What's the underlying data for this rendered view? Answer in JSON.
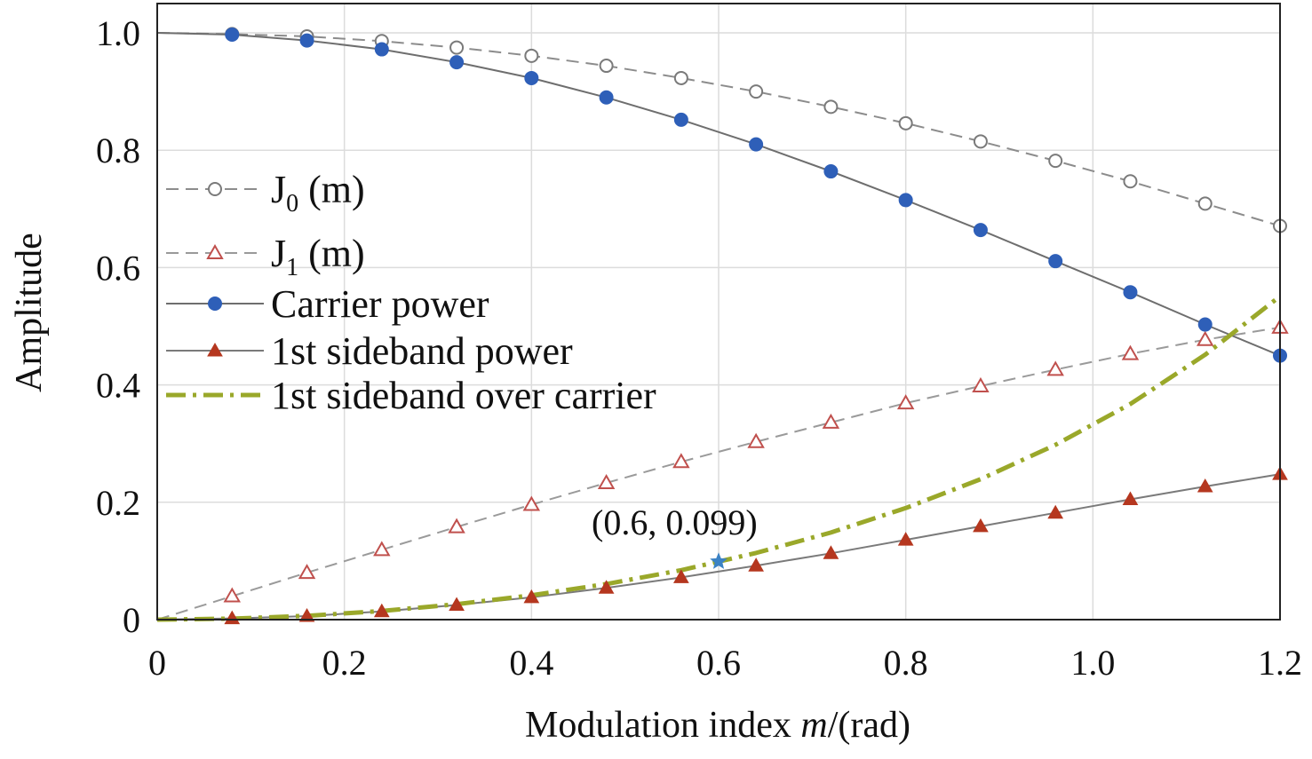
{
  "chart_data": {
    "type": "line",
    "xlabel_main": "Modulation index ",
    "xlabel_var": "m",
    "xlabel_unit": "/(rad)",
    "ylabel": "Amplitude",
    "xlim": [
      0,
      1.2
    ],
    "ylim": [
      0,
      1.0
    ],
    "x_ticks": [
      "0",
      "0.2",
      "0.4",
      "0.6",
      "0.8",
      "1.0",
      "1.2"
    ],
    "y_ticks": [
      "0",
      "0.2",
      "0.4",
      "0.6",
      "0.8",
      "1.0"
    ],
    "grid": true,
    "legend_position": "left",
    "series": [
      {
        "name": "J0 (m)",
        "legend_main": "J",
        "legend_sub": "0",
        "legend_arg": " (m)",
        "style": "dashed",
        "marker": "open-circle",
        "line_color": "#8c8c8c",
        "marker_color": "#7a7a7a",
        "x": [
          0,
          0.08,
          0.16,
          0.24,
          0.32,
          0.4,
          0.48,
          0.56,
          0.64,
          0.72,
          0.8,
          0.88,
          0.96,
          1.04,
          1.12,
          1.2
        ],
        "values": [
          1.0,
          0.998,
          0.994,
          0.986,
          0.975,
          0.961,
          0.944,
          0.923,
          0.9,
          0.874,
          0.846,
          0.815,
          0.782,
          0.747,
          0.709,
          0.671
        ]
      },
      {
        "name": "J1 (m)",
        "legend_main": "J",
        "legend_sub": "1",
        "legend_arg": " (m)",
        "style": "dashed",
        "marker": "open-triangle",
        "line_color": "#9a9a9a",
        "marker_color": "#c0504d",
        "x": [
          0,
          0.08,
          0.16,
          0.24,
          0.32,
          0.4,
          0.48,
          0.56,
          0.64,
          0.72,
          0.8,
          0.88,
          0.96,
          1.04,
          1.12,
          1.2
        ],
        "values": [
          0.0,
          0.04,
          0.08,
          0.119,
          0.158,
          0.196,
          0.233,
          0.269,
          0.303,
          0.336,
          0.369,
          0.398,
          0.426,
          0.453,
          0.477,
          0.498
        ]
      },
      {
        "name": "Carrier power",
        "style": "solid",
        "marker": "filled-circle",
        "line_color": "#6e6e6e",
        "marker_color": "#2e5fb8",
        "x": [
          0,
          0.08,
          0.16,
          0.24,
          0.32,
          0.4,
          0.48,
          0.56,
          0.64,
          0.72,
          0.8,
          0.88,
          0.96,
          1.04,
          1.12,
          1.2
        ],
        "values": [
          1.0,
          0.997,
          0.987,
          0.972,
          0.95,
          0.923,
          0.89,
          0.852,
          0.81,
          0.764,
          0.715,
          0.664,
          0.611,
          0.558,
          0.503,
          0.45
        ]
      },
      {
        "name": "1st sideband power",
        "style": "solid",
        "marker": "filled-triangle",
        "line_color": "#7a7a7a",
        "marker_color": "#b5371f",
        "x": [
          0,
          0.08,
          0.16,
          0.24,
          0.32,
          0.4,
          0.48,
          0.56,
          0.64,
          0.72,
          0.8,
          0.88,
          0.96,
          1.04,
          1.12,
          1.2
        ],
        "values": [
          0.0,
          0.002,
          0.006,
          0.014,
          0.025,
          0.038,
          0.054,
          0.072,
          0.092,
          0.113,
          0.136,
          0.159,
          0.182,
          0.205,
          0.227,
          0.248
        ]
      },
      {
        "name": "1st sideband over carrier",
        "style": "dash-dot",
        "marker": "none",
        "line_color": "#9aa82a",
        "marker_color": "#9aa82a",
        "x": [
          0,
          0.08,
          0.16,
          0.24,
          0.32,
          0.4,
          0.48,
          0.56,
          0.64,
          0.72,
          0.8,
          0.88,
          0.96,
          1.04,
          1.12,
          1.2
        ],
        "values": [
          0.0,
          0.0016,
          0.0065,
          0.0147,
          0.0263,
          0.0415,
          0.0606,
          0.0843,
          0.1136,
          0.1484,
          0.1902,
          0.2393,
          0.2979,
          0.3675,
          0.4515,
          0.5511
        ]
      }
    ],
    "annotation": {
      "text": "(0.6, 0.099)",
      "x": 0.6,
      "y": 0.099,
      "marker": "star",
      "color": "#3b82c4"
    }
  }
}
